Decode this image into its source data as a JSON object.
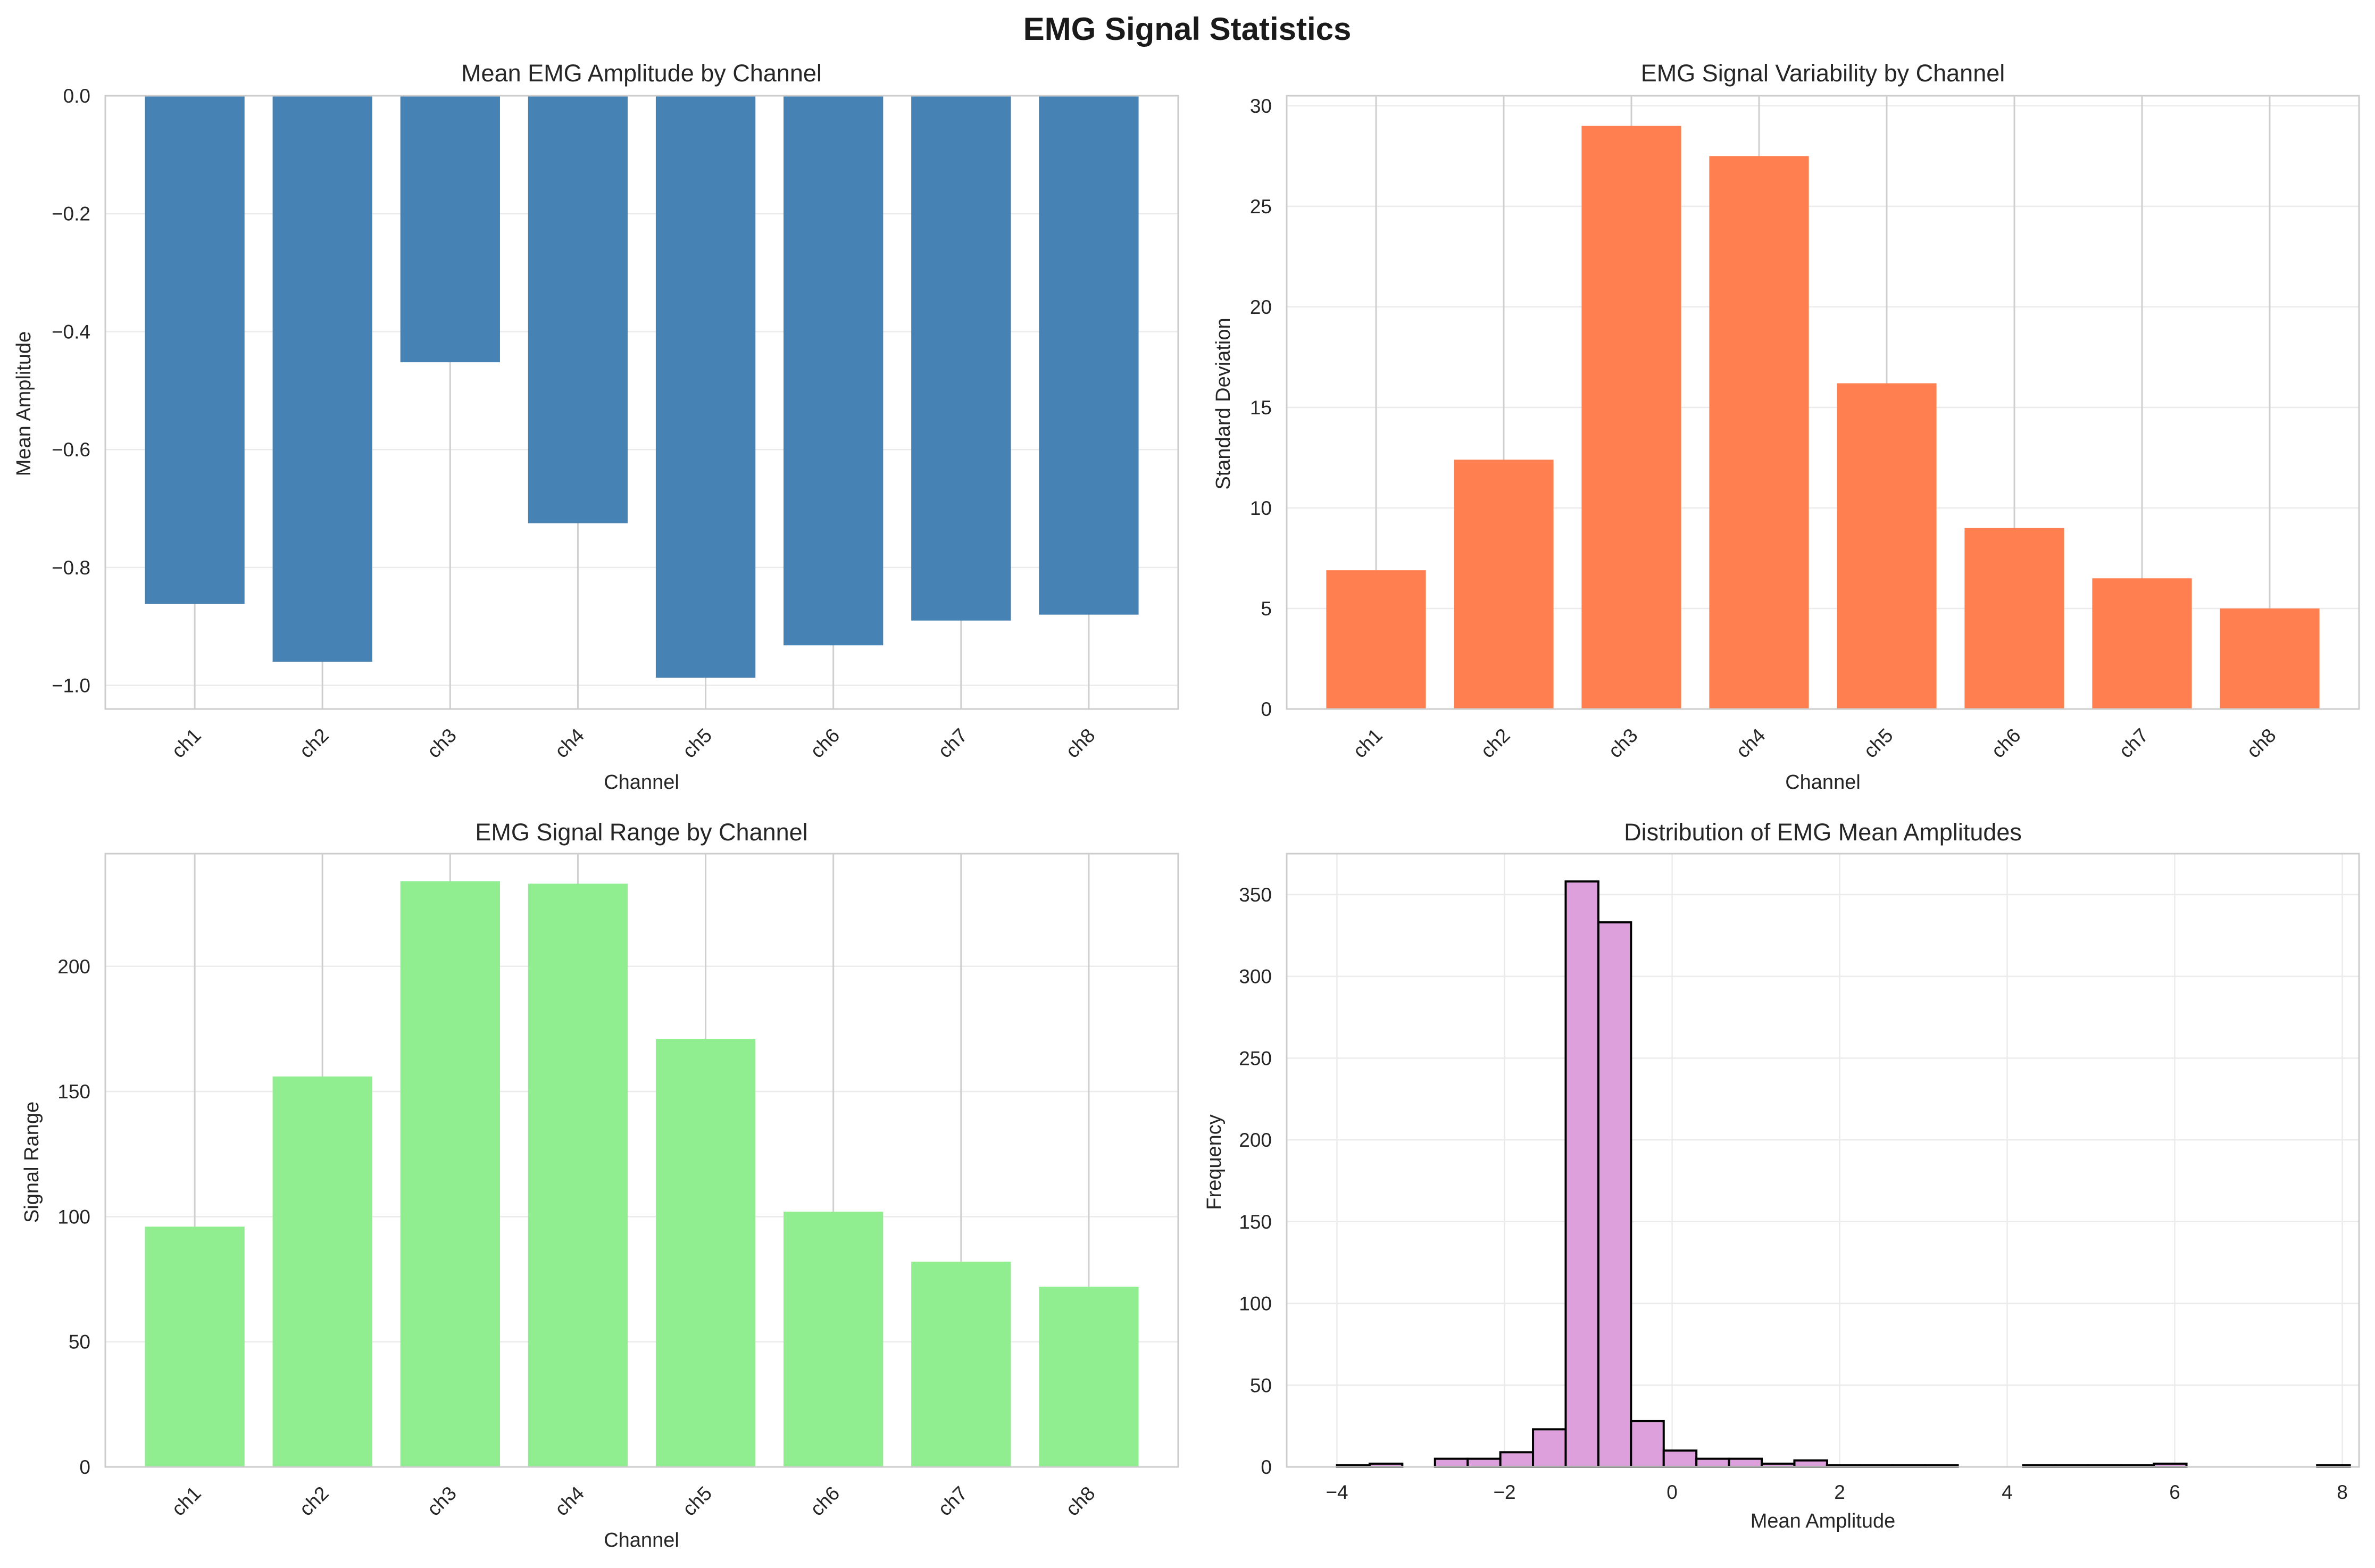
{
  "figure": {
    "title": "EMG Signal Statistics"
  },
  "chart_data": [
    {
      "type": "bar",
      "title": "Mean EMG Amplitude by Channel",
      "xlabel": "Channel",
      "ylabel": "Mean Amplitude",
      "categories": [
        "ch1",
        "ch2",
        "ch3",
        "ch4",
        "ch5",
        "ch6",
        "ch7",
        "ch8"
      ],
      "values": [
        -0.862,
        -0.96,
        -0.452,
        -0.725,
        -0.987,
        -0.932,
        -0.89,
        -0.88
      ],
      "ylim": [
        -1.04,
        0.0
      ],
      "yticks": [
        0.0,
        -0.2,
        -0.4,
        -0.6,
        -0.8,
        -1.0
      ],
      "ytick_labels": [
        "0.0",
        "−0.2",
        "−0.4",
        "−0.6",
        "−0.8",
        "−1.0"
      ],
      "color": "#4682b4",
      "grid": true
    },
    {
      "type": "bar",
      "title": "EMG Signal Variability by Channel",
      "xlabel": "Channel",
      "ylabel": "Standard Deviation",
      "categories": [
        "ch1",
        "ch2",
        "ch3",
        "ch4",
        "ch5",
        "ch6",
        "ch7",
        "ch8"
      ],
      "values": [
        6.9,
        12.4,
        29.0,
        27.5,
        16.2,
        9.0,
        6.5,
        5.0
      ],
      "ylim": [
        0,
        30.5
      ],
      "yticks": [
        0,
        5,
        10,
        15,
        20,
        25,
        30
      ],
      "ytick_labels": [
        "0",
        "5",
        "10",
        "15",
        "20",
        "25",
        "30"
      ],
      "color": "#ff7f50",
      "grid": true
    },
    {
      "type": "bar",
      "title": "EMG Signal Range by Channel",
      "xlabel": "Channel",
      "ylabel": "Signal Range",
      "categories": [
        "ch1",
        "ch2",
        "ch3",
        "ch4",
        "ch5",
        "ch6",
        "ch7",
        "ch8"
      ],
      "values": [
        96,
        156,
        234,
        233,
        171,
        102,
        82,
        72
      ],
      "ylim": [
        0,
        245
      ],
      "yticks": [
        0,
        50,
        100,
        150,
        200
      ],
      "ytick_labels": [
        "0",
        "50",
        "100",
        "150",
        "200"
      ],
      "color": "#90ee90",
      "grid": true
    },
    {
      "type": "histogram",
      "title": "Distribution of EMG Mean Amplitudes",
      "xlabel": "Mean Amplitude",
      "ylabel": "Frequency",
      "bin_start": -4.0,
      "bin_width": 0.39,
      "counts": [
        1,
        2,
        0,
        5,
        5,
        9,
        23,
        358,
        333,
        28,
        10,
        5,
        5,
        2,
        4,
        1,
        1,
        1,
        1,
        0,
        0,
        1,
        1,
        1,
        1,
        2,
        0,
        0,
        0,
        0,
        1
      ],
      "xlim": [
        -4.6,
        8.2
      ],
      "ylim": [
        0,
        375
      ],
      "xticks": [
        -4,
        -2,
        0,
        2,
        4,
        6,
        8
      ],
      "xtick_labels": [
        "−4",
        "−2",
        "0",
        "2",
        "4",
        "6",
        "8"
      ],
      "yticks": [
        0,
        50,
        100,
        150,
        200,
        250,
        300,
        350
      ],
      "ytick_labels": [
        "0",
        "50",
        "100",
        "150",
        "200",
        "250",
        "300",
        "350"
      ],
      "color": "#dda0dd",
      "edgecolor": "#000000",
      "grid": true
    }
  ]
}
